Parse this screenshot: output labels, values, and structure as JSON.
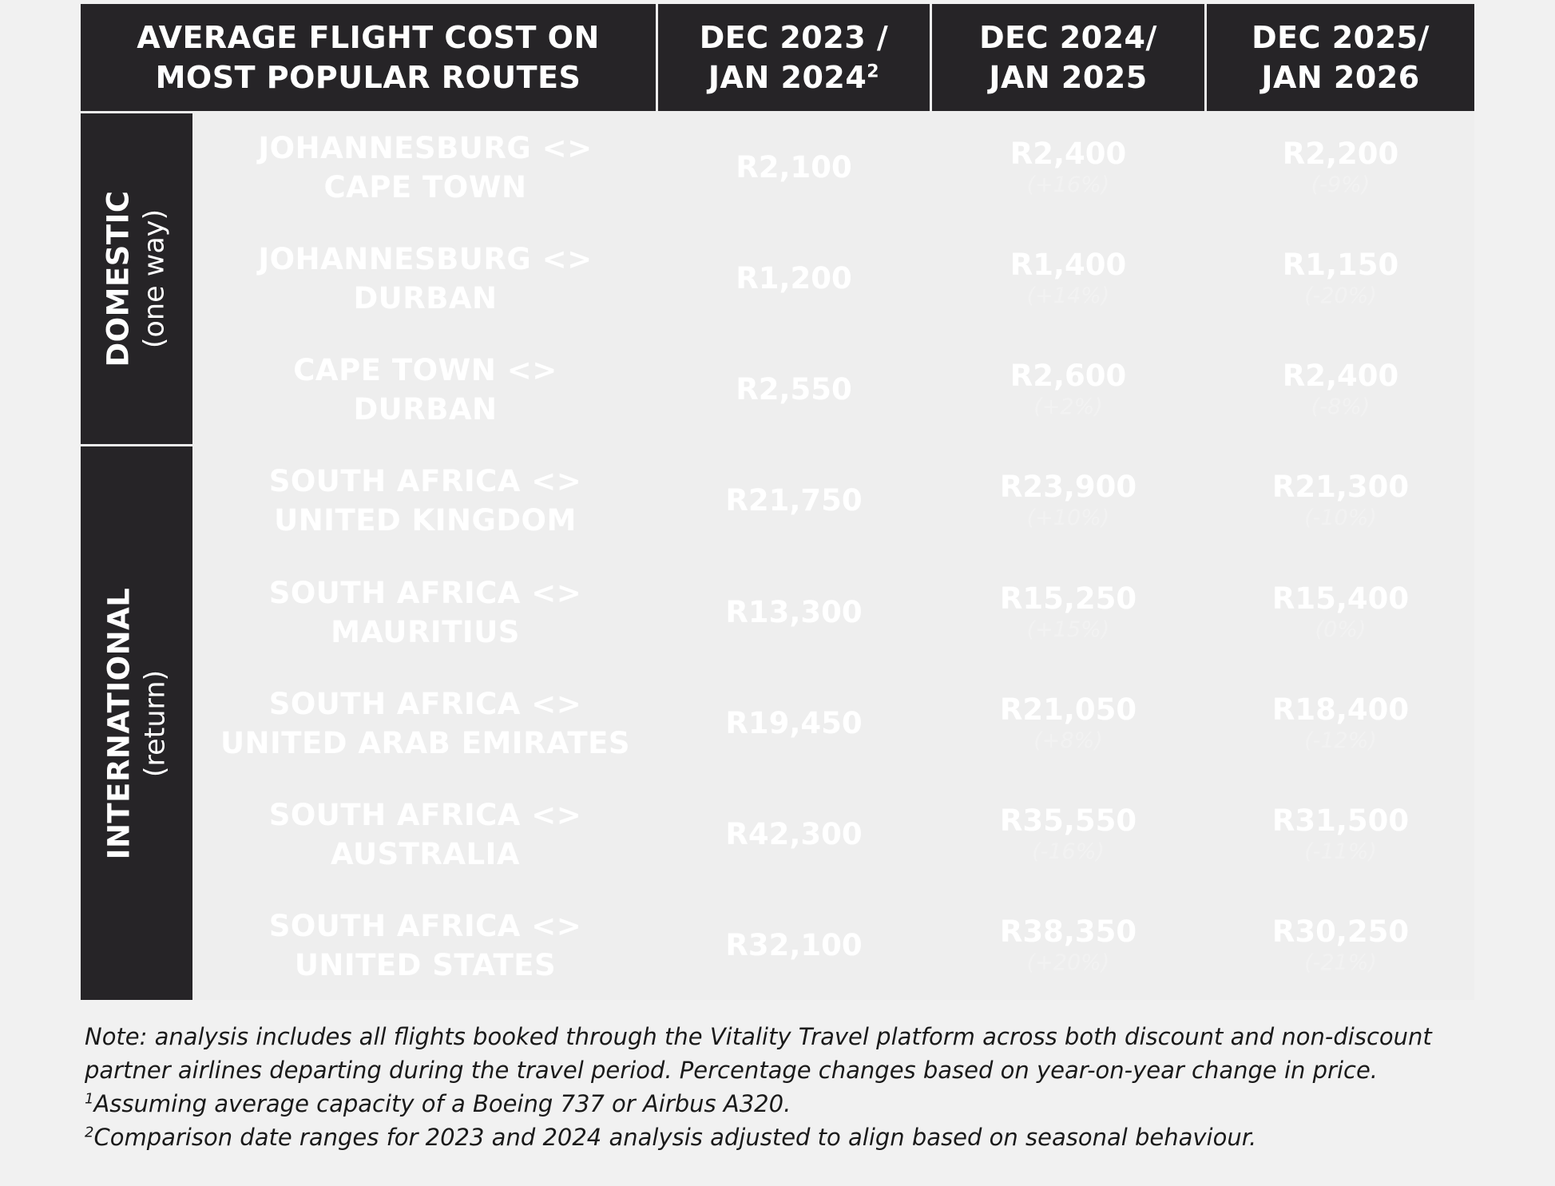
{
  "header": {
    "title_line1": "AVERAGE FLIGHT COST ON",
    "title_line2": "MOST POPULAR ROUTES",
    "periods": [
      {
        "line1": "DEC 2023 /",
        "line2": "JAN 2024",
        "sup": "2"
      },
      {
        "line1": "DEC 2024/",
        "line2": "JAN 2025",
        "sup": ""
      },
      {
        "line1": "DEC 2025/",
        "line2": "JAN 2026",
        "sup": ""
      }
    ]
  },
  "categories": [
    {
      "title": "DOMESTIC",
      "subtitle": "(one way)"
    },
    {
      "title": "INTERNATIONAL",
      "subtitle": "(return)"
    }
  ],
  "chart_data": {
    "type": "table",
    "columns": [
      "DEC 2023 / JAN 2024",
      "DEC 2024/ JAN 2025",
      "DEC 2025/ JAN 2026"
    ],
    "rows": [
      {
        "group": "DOMESTIC",
        "route_line1": "JOHANNESBURG <>",
        "route_line2": "CAPE TOWN",
        "v2024": "R2,100",
        "v2025": "R2,400",
        "p2025": "(+16%)",
        "v2026": "R2,200",
        "p2026": "(-9%)"
      },
      {
        "group": "DOMESTIC",
        "route_line1": "JOHANNESBURG <>",
        "route_line2": "DURBAN",
        "v2024": "R1,200",
        "v2025": "R1,400",
        "p2025": "(+14%)",
        "v2026": "R1,150",
        "p2026": "(-20%)"
      },
      {
        "group": "DOMESTIC",
        "route_line1": "CAPE TOWN <>",
        "route_line2": "DURBAN",
        "v2024": "R2,550",
        "v2025": "R2,600",
        "p2025": "(+2%)",
        "v2026": "R2,400",
        "p2026": "(-8%)"
      },
      {
        "group": "INTERNATIONAL",
        "route_line1": "SOUTH AFRICA  <>",
        "route_line2": "UNITED KINGDOM",
        "v2024": "R21,750",
        "v2025": "R23,900",
        "p2025": "(+10%)",
        "v2026": "R21,300",
        "p2026": "(-10%)"
      },
      {
        "group": "INTERNATIONAL",
        "route_line1": "SOUTH AFRICA  <>",
        "route_line2": "MAURITIUS",
        "v2024": "R13,300",
        "v2025": "R15,250",
        "p2025": "(+15%)",
        "v2026": "R15,400",
        "p2026": "(0%)"
      },
      {
        "group": "INTERNATIONAL",
        "route_line1": "SOUTH AFRICA <>",
        "route_line2": "UNITED ARAB EMIRATES",
        "v2024": "R19,450",
        "v2025": "R21,050",
        "p2025": "(+8%)",
        "v2026": "R18,400",
        "p2026": "(-12%)"
      },
      {
        "group": "INTERNATIONAL",
        "route_line1": "SOUTH AFRICA <>",
        "route_line2": "AUSTRALIA",
        "v2024": "R42,300",
        "v2025": "R35,550",
        "p2025": "(-16%)",
        "v2026": "R31,500",
        "p2026": "(-11%)"
      },
      {
        "group": "INTERNATIONAL",
        "route_line1": "SOUTH AFRICA <>",
        "route_line2": "UNITED STATES",
        "v2024": "R32,100",
        "v2025": "R38,350",
        "p2025": "(+20%)",
        "v2026": "R30,250",
        "p2026": "(-21%)"
      }
    ]
  },
  "notes": {
    "line1": "Note: analysis includes all flights booked through the Vitality Travel platform across both discount and non-discount",
    "line2": "partner airlines departing during the travel period. Percentage changes based on year-on-year change in price.",
    "fn1_mark": "1",
    "fn1_text": "Assuming average capacity of a Boeing 737 or Airbus A320.",
    "fn2_mark": "2",
    "fn2_text": "Comparison date ranges for 2023 and 2024 analysis adjusted to align based on seasonal behaviour."
  }
}
